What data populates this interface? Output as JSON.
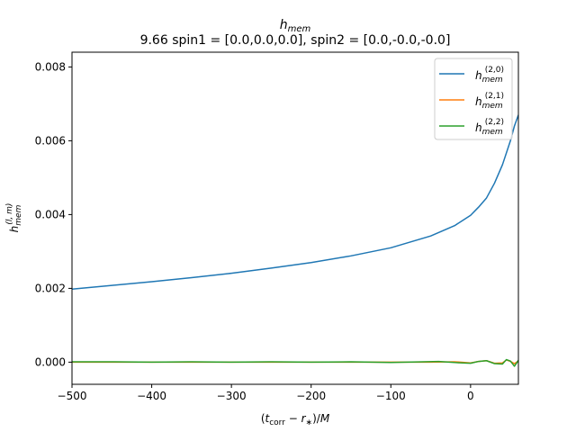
{
  "chart_data": {
    "type": "line",
    "title_main": "h",
    "title_main_sub": "mem",
    "title_line2": "9.66 spin1 = [0.0,0.0,0.0], spin2 = [0.0,-0.0,-0.0]",
    "xlabel": "(t_corr − r_*)/M",
    "ylabel": "h_mem^(l,m)",
    "xlim": [
      -500,
      60
    ],
    "ylim": [
      -0.0006,
      0.0084
    ],
    "xticks": [
      -500,
      -400,
      -300,
      -200,
      -100,
      0
    ],
    "xtick_labels": [
      "−500",
      "−400",
      "−300",
      "−200",
      "−100",
      "0"
    ],
    "yticks": [
      0.0,
      0.002,
      0.004,
      0.006,
      0.008
    ],
    "ytick_labels": [
      "0.000",
      "0.002",
      "0.004",
      "0.006",
      "0.008"
    ],
    "legend_position": "top-right",
    "grid": false,
    "series": [
      {
        "name": "h_mem^(2,0)",
        "label_base": "h",
        "label_sub": "mem",
        "label_sup": "(2,0)",
        "color": "#1f77b4",
        "x": [
          -500,
          -450,
          -400,
          -350,
          -300,
          -250,
          -200,
          -150,
          -100,
          -50,
          -20,
          0,
          10,
          20,
          30,
          40,
          50,
          55,
          60
        ],
        "y": [
          0.00198,
          0.00208,
          0.00218,
          0.00229,
          0.00241,
          0.00255,
          0.0027,
          0.00288,
          0.0031,
          0.00342,
          0.0037,
          0.00398,
          0.0042,
          0.00445,
          0.00485,
          0.00535,
          0.006,
          0.0064,
          0.0067
        ]
      },
      {
        "name": "h_mem^(2,1)",
        "label_base": "h",
        "label_sub": "mem",
        "label_sup": "(2,1)",
        "color": "#ff7f0e",
        "x": [
          -500,
          -400,
          -300,
          -200,
          -100,
          -50,
          -20,
          0,
          10,
          20,
          30,
          40,
          45,
          50,
          55,
          60
        ],
        "y": [
          0.0,
          0.0,
          0.0,
          0.0,
          0.0,
          0.0,
          1e-05,
          -2e-05,
          2e-05,
          4e-05,
          -3e-05,
          -2e-05,
          6e-05,
          2e-05,
          -4e-05,
          3e-05
        ]
      },
      {
        "name": "h_mem^(2,2)",
        "label_base": "h",
        "label_sub": "mem",
        "label_sup": "(2,2)",
        "color": "#2ca02c",
        "x": [
          -500,
          -450,
          -400,
          -350,
          -300,
          -250,
          -200,
          -150,
          -100,
          -60,
          -40,
          -20,
          0,
          10,
          20,
          30,
          40,
          45,
          50,
          55,
          60
        ],
        "y": [
          1e-05,
          1e-05,
          0.0,
          1e-05,
          0.0,
          1e-05,
          0.0,
          1e-05,
          -1e-05,
          1e-05,
          2e-05,
          -1e-05,
          -3e-05,
          2e-05,
          4e-05,
          -4e-05,
          -5e-05,
          7e-05,
          3e-05,
          -0.00011,
          5e-05
        ]
      }
    ]
  }
}
